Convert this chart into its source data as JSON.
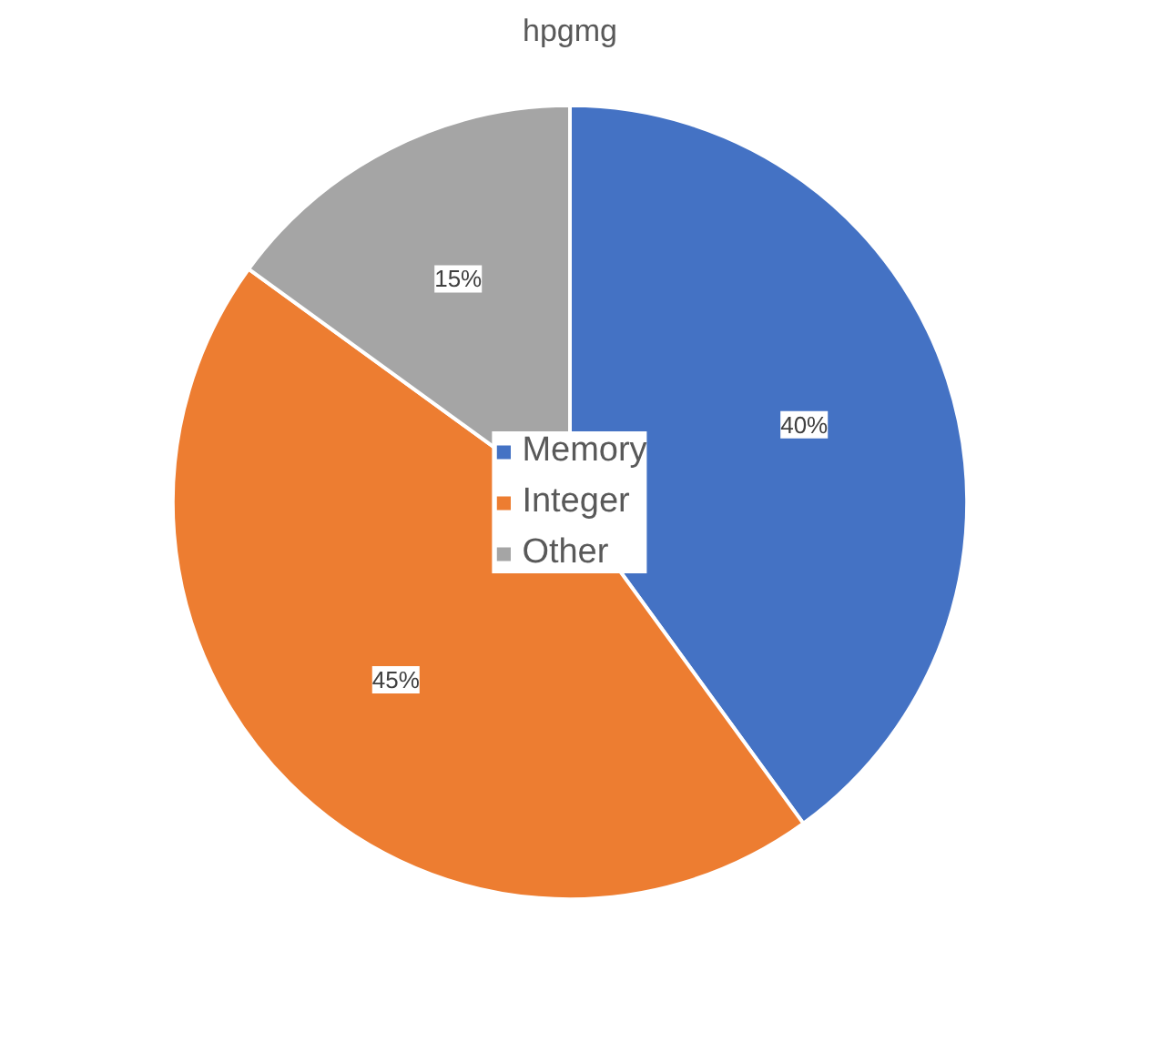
{
  "chart_data": {
    "type": "pie",
    "title": "hpgmg",
    "categories": [
      "Memory",
      "Integer",
      "Other"
    ],
    "values": [
      40,
      45,
      15
    ],
    "colors": [
      "#4472c4",
      "#ed7d31",
      "#a5a5a5"
    ],
    "value_labels": [
      "40%",
      "45%",
      "15%"
    ],
    "legend": "center"
  }
}
